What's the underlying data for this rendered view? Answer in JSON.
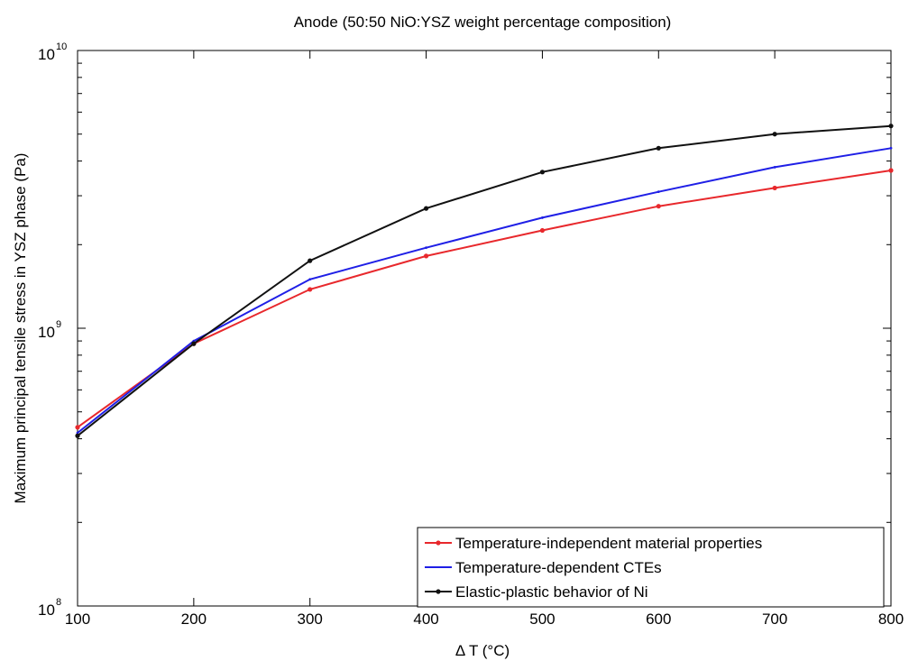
{
  "chart_data": {
    "type": "line",
    "title": "Anode (50:50 NiO:YSZ weight percentage composition)",
    "xlabel": "Δ T (°C)",
    "ylabel": "Maximum principal tensile stress in YSZ phase (Pa)",
    "xlim": [
      100,
      800
    ],
    "ylim": [
      100000000,
      10000000000
    ],
    "yscale": "log",
    "x_ticks": [
      "100",
      "200",
      "300",
      "400",
      "500",
      "600",
      "700",
      "800"
    ],
    "y_ticks": [
      {
        "value": 100000000,
        "base": "10",
        "exp": "8"
      },
      {
        "value": 1000000000,
        "base": "10",
        "exp": "9"
      },
      {
        "value": 10000000000,
        "base": "10",
        "exp": "10"
      }
    ],
    "grid": false,
    "legend_position": "bottom-right",
    "x": [
      100,
      200,
      300,
      400,
      500,
      600,
      700,
      800
    ],
    "series": [
      {
        "name": "Temperature-independent material properties",
        "color": "#e8282c",
        "marker": "dot",
        "values": [
          440000000,
          880000000,
          1380000000,
          1820000000,
          2250000000,
          2750000000,
          3200000000,
          3700000000
        ]
      },
      {
        "name": "Temperature-dependent CTEs",
        "color": "#1f1fe6",
        "marker": "none",
        "values": [
          420000000,
          900000000,
          1500000000,
          1950000000,
          2500000000,
          3100000000,
          3800000000,
          4450000000
        ]
      },
      {
        "name": "Elastic-plastic behavior of Ni",
        "color": "#111111",
        "marker": "dot",
        "values": [
          410000000,
          880000000,
          1750000000,
          2700000000,
          3650000000,
          4450000000,
          5000000000,
          5350000000
        ]
      }
    ]
  }
}
